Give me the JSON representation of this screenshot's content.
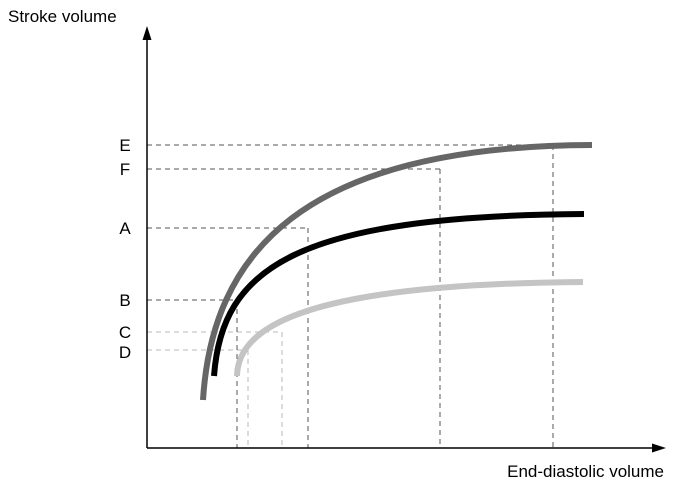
{
  "diagram": {
    "y_axis_title": "Stroke volume",
    "x_axis_title": "End-diastolic volume",
    "level_labels": [
      "E",
      "F",
      "A",
      "B",
      "C",
      "D"
    ],
    "colors": {
      "axis": "#000000",
      "guide_dark": "#555555",
      "guide_light": "#b8b8b8",
      "curve_dark_gray": "#666666",
      "curve_black": "#000000",
      "curve_light_gray": "#c4c4c4"
    }
  }
}
